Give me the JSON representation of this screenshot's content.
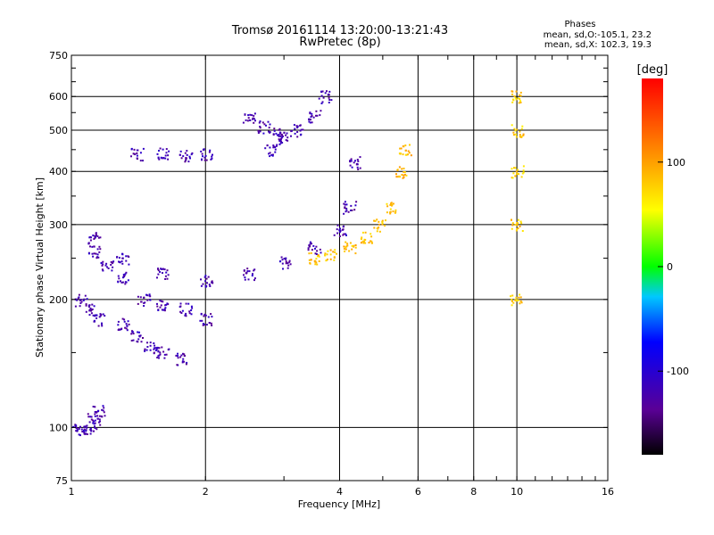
{
  "header": {
    "title_line1": "Tromsø 20161114 13:20:00-13:21:43",
    "title_line2": "RwPretec (8p)"
  },
  "phase_legend": {
    "heading": "Phases",
    "o_line": "mean, sd,O:-105.1, 23.2",
    "x_line": "mean, sd,X: 102.3, 19.3"
  },
  "colorbar": {
    "unit_label": "[deg]",
    "ticks": [
      "100",
      "0",
      "-100"
    ],
    "tick_values": [
      100,
      0,
      -100
    ],
    "range": [
      -180,
      180
    ]
  },
  "chart_data": {
    "type": "scatter",
    "xlabel": "Frequency [MHz]",
    "ylabel": "Stationary phase Virtual Height [km]",
    "x_scale": "log",
    "y_scale": "log",
    "xlim": [
      1,
      16
    ],
    "ylim": [
      75,
      750
    ],
    "x_ticks": [
      1,
      2,
      4,
      6,
      8,
      10,
      16
    ],
    "x_tick_labels": [
      "1",
      "2",
      "4",
      "6",
      "8",
      "10",
      "16"
    ],
    "y_ticks": [
      75,
      100,
      200,
      300,
      400,
      500,
      600,
      750
    ],
    "y_tick_labels": [
      "75",
      "100",
      "200",
      "300",
      "400",
      "500",
      "600",
      "750"
    ],
    "grid": true,
    "series": [
      {
        "values": [
          [
            1.12,
            280
          ],
          [
            1.3,
            250
          ],
          [
            1.6,
            230
          ],
          [
            2.0,
            222
          ],
          [
            2.5,
            230
          ],
          [
            3.0,
            245
          ],
          [
            3.5,
            265
          ],
          [
            4.0,
            290
          ],
          [
            4.2,
            330
          ],
          [
            4.3,
            420
          ]
        ]
      },
      {
        "values": [
          [
            1.12,
            260
          ],
          [
            1.2,
            240
          ],
          [
            1.3,
            225
          ],
          [
            1.45,
            200
          ],
          [
            1.6,
            195
          ],
          [
            1.8,
            190
          ],
          [
            2.0,
            180
          ]
        ]
      },
      {
        "values": [
          [
            1.3,
            175
          ],
          [
            1.4,
            165
          ],
          [
            1.5,
            155
          ],
          [
            1.6,
            150
          ],
          [
            1.75,
            145
          ]
        ]
      },
      {
        "values": [
          [
            1.05,
            200
          ],
          [
            1.1,
            190
          ],
          [
            1.15,
            180
          ]
        ]
      },
      {
        "values": [
          [
            1.4,
            440
          ],
          [
            1.6,
            440
          ],
          [
            1.8,
            435
          ],
          [
            2.0,
            440
          ]
        ]
      },
      {
        "values": [
          [
            2.8,
            450
          ],
          [
            3.0,
            480
          ],
          [
            3.2,
            500
          ],
          [
            3.5,
            540
          ],
          [
            3.7,
            600
          ]
        ]
      },
      {
        "values": [
          [
            2.5,
            540
          ],
          [
            2.7,
            510
          ],
          [
            2.9,
            490
          ]
        ]
      },
      {
        "values": [
          [
            1.0,
            100
          ],
          [
            1.05,
            99
          ],
          [
            1.1,
            100
          ],
          [
            1.12,
            105
          ],
          [
            1.15,
            110
          ]
        ]
      },
      {
        "values": [
          [
            3.5,
            250
          ],
          [
            3.8,
            255
          ],
          [
            4.2,
            265
          ],
          [
            4.6,
            280
          ],
          [
            4.9,
            300
          ],
          [
            5.2,
            330
          ],
          [
            5.5,
            400
          ],
          [
            5.6,
            450
          ]
        ]
      },
      {
        "values": [
          [
            9.9,
            200
          ],
          [
            9.95,
            300
          ],
          [
            10.0,
            400
          ],
          [
            10.0,
            500
          ],
          [
            10.0,
            600
          ]
        ]
      }
    ]
  }
}
